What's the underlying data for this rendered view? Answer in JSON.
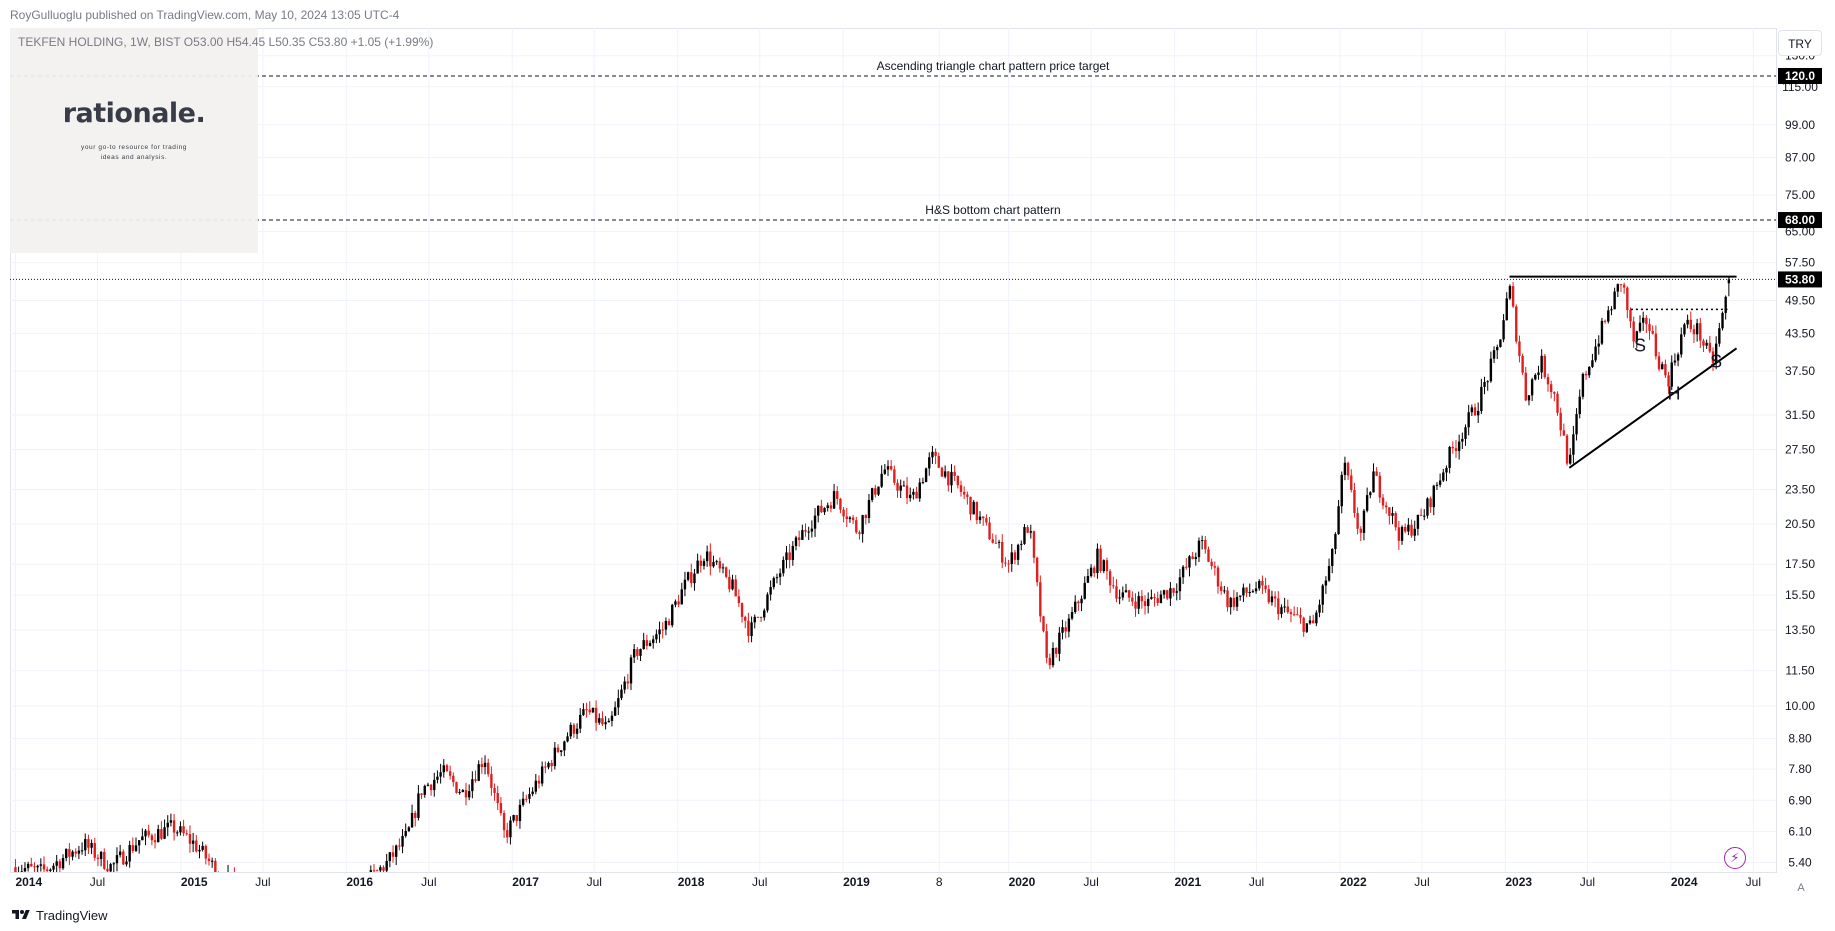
{
  "header": {
    "publisher": "RoyGulluoglu published on TradingView.com, May 10, 2024 13:05 UTC-4",
    "symbol_line": "TEKFEN HOLDING, 1W, BIST  O53.00  H54.45  L50.35  C53.80  +1.05 (+1.99%)"
  },
  "logo": {
    "word": "rationale.",
    "tagline": "your go-to resource for trading ideas and analysis."
  },
  "toolbar": {
    "currency": "TRY",
    "auto_scale": "A"
  },
  "footer": {
    "brand": "TradingView"
  },
  "colors": {
    "up": "#000000",
    "down": "#e01e1e",
    "grid": "#f0f3fa",
    "last_price_badge": "#000000",
    "level_badge": "#000000"
  },
  "chart_data": {
    "type": "candlestick",
    "symbol": "TEKFEN HOLDING",
    "interval": "1W",
    "exchange": "BIST",
    "ohlc_last": {
      "open": 53.0,
      "high": 54.45,
      "low": 50.35,
      "close": 53.8,
      "change": 1.05,
      "change_pct": 1.99
    },
    "y_scale": "log",
    "y_range": [
      5.2,
      145
    ],
    "x_range": [
      "2013-12-20",
      "2024-08-20"
    ],
    "y_ticks": [
      "130.0",
      "115.00",
      "99.00",
      "87.00",
      "75.00",
      "65.00",
      "57.50",
      "49.50",
      "43.50",
      "37.50",
      "31.50",
      "27.50",
      "23.50",
      "20.50",
      "17.50",
      "15.50",
      "13.50",
      "11.50",
      "10.00",
      "8.80",
      "7.80",
      "6.90",
      "6.10",
      "5.40"
    ],
    "x_ticks": [
      {
        "label": "2014",
        "date": "2014-01-01",
        "year": true
      },
      {
        "label": "Jul",
        "date": "2014-07-01",
        "year": false
      },
      {
        "label": "2015",
        "date": "2015-01-01",
        "year": true
      },
      {
        "label": "Jul",
        "date": "2015-07-01",
        "year": false
      },
      {
        "label": "2016",
        "date": "2016-01-01",
        "year": true
      },
      {
        "label": "Jul",
        "date": "2016-07-01",
        "year": false
      },
      {
        "label": "2017",
        "date": "2017-01-01",
        "year": true
      },
      {
        "label": "Jul",
        "date": "2017-07-01",
        "year": false
      },
      {
        "label": "2018",
        "date": "2018-01-01",
        "year": true
      },
      {
        "label": "Jul",
        "date": "2018-07-01",
        "year": false
      },
      {
        "label": "2019",
        "date": "2019-01-01",
        "year": true
      },
      {
        "label": "8",
        "date": "2019-08-01",
        "year": false
      },
      {
        "label": "2020",
        "date": "2020-01-01",
        "year": true
      },
      {
        "label": "Jul",
        "date": "2020-07-01",
        "year": false
      },
      {
        "label": "2021",
        "date": "2021-01-01",
        "year": true
      },
      {
        "label": "Jul",
        "date": "2021-07-01",
        "year": false
      },
      {
        "label": "2022",
        "date": "2022-01-01",
        "year": true
      },
      {
        "label": "Jul",
        "date": "2022-07-01",
        "year": false
      },
      {
        "label": "2023",
        "date": "2023-01-01",
        "year": true
      },
      {
        "label": "Jul",
        "date": "2023-07-01",
        "year": false
      },
      {
        "label": "2024",
        "date": "2024-01-01",
        "year": true
      },
      {
        "label": "Jul",
        "date": "2024-07-01",
        "year": false
      }
    ],
    "price_path": [
      [
        "2014-01-01",
        5.3
      ],
      [
        "2014-03-01",
        5.2
      ],
      [
        "2014-06-01",
        5.8
      ],
      [
        "2014-08-01",
        5.3
      ],
      [
        "2014-10-01",
        5.9
      ],
      [
        "2014-12-15",
        6.2
      ],
      [
        "2015-02-01",
        5.8
      ],
      [
        "2015-04-01",
        5.1
      ],
      [
        "2015-07-01",
        4.7
      ],
      [
        "2015-12-01",
        4.4
      ],
      [
        "2016-04-01",
        5.4
      ],
      [
        "2016-05-15",
        6.0
      ],
      [
        "2016-06-15",
        7.2
      ],
      [
        "2016-08-01",
        7.7
      ],
      [
        "2016-09-15",
        7.1
      ],
      [
        "2016-11-01",
        8.2
      ],
      [
        "2016-12-15",
        6.0
      ],
      [
        "2017-03-01",
        7.5
      ],
      [
        "2017-05-01",
        8.9
      ],
      [
        "2017-06-15",
        9.8
      ],
      [
        "2017-08-01",
        9.1
      ],
      [
        "2017-10-01",
        12.4
      ],
      [
        "2017-12-01",
        13.6
      ],
      [
        "2018-01-15",
        16.0
      ],
      [
        "2018-03-01",
        18.3
      ],
      [
        "2018-05-01",
        16.0
      ],
      [
        "2018-06-10",
        13.4
      ],
      [
        "2018-08-15",
        17.0
      ],
      [
        "2018-10-15",
        20.5
      ],
      [
        "2018-12-15",
        23.0
      ],
      [
        "2019-02-01",
        20.0
      ],
      [
        "2019-04-01",
        25.5
      ],
      [
        "2019-06-01",
        22.5
      ],
      [
        "2019-07-15",
        26.7
      ],
      [
        "2019-09-15",
        23.5
      ],
      [
        "2019-11-15",
        20.0
      ],
      [
        "2020-01-01",
        17.5
      ],
      [
        "2020-02-15",
        20.5
      ],
      [
        "2020-03-25",
        11.8
      ],
      [
        "2020-05-15",
        14.0
      ],
      [
        "2020-07-15",
        18.0
      ],
      [
        "2020-09-01",
        15.5
      ],
      [
        "2020-11-01",
        15.0
      ],
      [
        "2021-01-01",
        16.0
      ],
      [
        "2021-03-01",
        19.0
      ],
      [
        "2021-05-01",
        15.0
      ],
      [
        "2021-07-01",
        16.0
      ],
      [
        "2021-09-01",
        14.5
      ],
      [
        "2021-11-01",
        13.6
      ],
      [
        "2021-12-15",
        18.0
      ],
      [
        "2022-01-10",
        26.0
      ],
      [
        "2022-02-15",
        19.5
      ],
      [
        "2022-03-15",
        25.0
      ],
      [
        "2022-05-15",
        19.5
      ],
      [
        "2022-07-01",
        21.0
      ],
      [
        "2022-09-01",
        27.0
      ],
      [
        "2022-11-01",
        33.0
      ],
      [
        "2022-12-15",
        41.0
      ],
      [
        "2023-01-10",
        52.0
      ],
      [
        "2023-02-15",
        34.0
      ],
      [
        "2023-03-20",
        39.0
      ],
      [
        "2023-04-20",
        34.0
      ],
      [
        "2023-05-22",
        25.6
      ],
      [
        "2023-06-20",
        36.0
      ],
      [
        "2023-08-01",
        44.0
      ],
      [
        "2023-09-15",
        54.0
      ],
      [
        "2023-10-10",
        42.0
      ],
      [
        "2023-11-10",
        46.0
      ],
      [
        "2023-12-01",
        40.0
      ],
      [
        "2023-12-25",
        36.0
      ],
      [
        "2024-02-01",
        45.0
      ],
      [
        "2024-03-01",
        44.0
      ],
      [
        "2024-04-01",
        38.5
      ],
      [
        "2024-04-20",
        45.0
      ],
      [
        "2024-05-10",
        53.8
      ]
    ],
    "annotations": {
      "levels": [
        {
          "label": "Ascending triangle chart pattern price target",
          "price": 120.0,
          "badge": "120.0"
        },
        {
          "label": "H&S bottom chart pattern",
          "price": 68.0,
          "badge": "68.00"
        }
      ],
      "last_price": {
        "price": 53.8,
        "badge": "53.80"
      },
      "triangle_resistance": {
        "from": [
          "2023-01-10",
          54.4
        ],
        "to": [
          "2024-05-25",
          54.4
        ]
      },
      "triangle_support": {
        "from": [
          "2023-05-22",
          25.6
        ],
        "to": [
          "2024-05-25",
          41.0
        ]
      },
      "neckline": {
        "from": [
          "2023-10-05",
          47.8
        ],
        "to": [
          "2024-05-05",
          47.8
        ]
      },
      "pattern_labels": [
        {
          "text": "S",
          "date": "2023-10-25",
          "price": 40.5
        },
        {
          "text": "H",
          "date": "2024-01-08",
          "price": 33.5
        },
        {
          "text": "S",
          "date": "2024-04-10",
          "price": 38.0
        }
      ]
    }
  }
}
